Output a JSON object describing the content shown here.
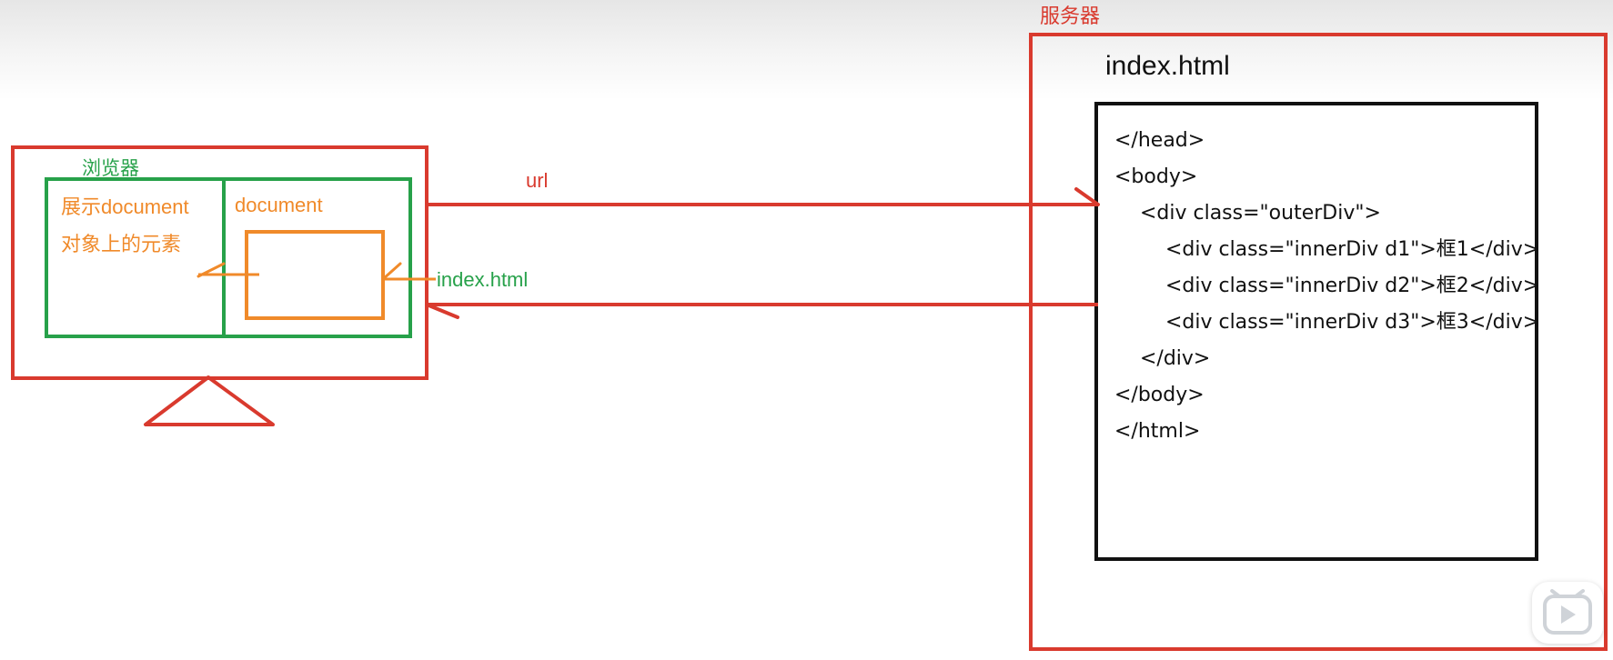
{
  "server": {
    "label": "服务器",
    "file_title": "index.html",
    "code_lines": [
      "</head>",
      "<body>",
      "    <div class=\"outerDiv\">",
      "        <div class=\"innerDiv d1\">框1</div>",
      "        <div class=\"innerDiv d2\">框2</div>",
      "        <div class=\"innerDiv d3\">框3</div>",
      "    </div>",
      "</body>",
      "</html>"
    ]
  },
  "browser": {
    "label": "浏览器",
    "display_text_line1": "展示document",
    "display_text_line2": "对象上的元素",
    "document_label": "document"
  },
  "arrows": {
    "request_label": "url",
    "response_label": "index.html"
  },
  "colors": {
    "red": "#d93a2e",
    "green": "#27a14a",
    "orange": "#f08a2a",
    "black": "#111111"
  },
  "icons": {
    "play": "play-icon"
  }
}
